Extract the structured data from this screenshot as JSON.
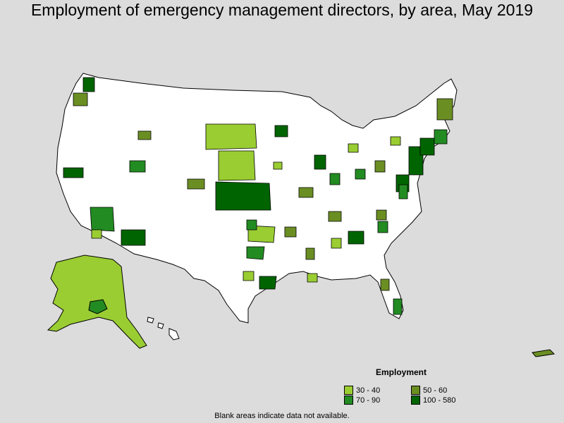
{
  "title": "Employment of emergency management directors, by area, May 2019",
  "legend": {
    "title": "Employment",
    "items": [
      {
        "label": "30 - 40",
        "color": "#9acd32"
      },
      {
        "label": "50 - 60",
        "color": "#6b8e23"
      },
      {
        "label": "70 - 90",
        "color": "#228b22"
      },
      {
        "label": "100 - 580",
        "color": "#006400"
      }
    ]
  },
  "footnote": "Blank areas indicate data not available."
}
